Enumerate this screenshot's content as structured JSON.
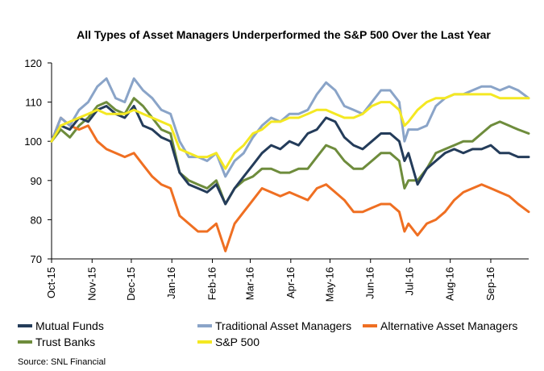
{
  "source": "Source: SNL Financial",
  "colors": {
    "mutual_funds": "#243c5a",
    "traditional": "#8aa4c8",
    "alternative": "#ef6f22",
    "trust_banks": "#6e8c3c",
    "sp500": "#f4e822"
  },
  "chart_data": {
    "type": "line",
    "title": "All Types of Asset Managers Underperformed the S&P 500 Over the Last Year",
    "xlabel": "",
    "ylabel": "",
    "ylim": [
      70,
      120
    ],
    "yticks": [
      70,
      80,
      90,
      100,
      110,
      120
    ],
    "grid": false,
    "legend": "bottom",
    "x_tick_labels": [
      "Oct-15",
      "Nov-15",
      "Dec-15",
      "Jan-16",
      "Feb-16",
      "Mar-16",
      "Apr-16",
      "May-16",
      "Jun-16",
      "Jul-16",
      "Aug-16",
      "Sep-16"
    ],
    "x": [
      "2015-10-01",
      "2015-10-08",
      "2015-10-15",
      "2015-10-22",
      "2015-10-29",
      "2015-11-05",
      "2015-11-12",
      "2015-11-19",
      "2015-11-26",
      "2015-12-03",
      "2015-12-10",
      "2015-12-17",
      "2015-12-24",
      "2015-12-31",
      "2016-01-07",
      "2016-01-14",
      "2016-01-21",
      "2016-01-28",
      "2016-02-04",
      "2016-02-11",
      "2016-02-18",
      "2016-02-25",
      "2016-03-03",
      "2016-03-10",
      "2016-03-17",
      "2016-03-24",
      "2016-03-31",
      "2016-04-07",
      "2016-04-14",
      "2016-04-21",
      "2016-04-28",
      "2016-05-05",
      "2016-05-12",
      "2016-05-19",
      "2016-05-26",
      "2016-06-02",
      "2016-06-09",
      "2016-06-16",
      "2016-06-23",
      "2016-06-27",
      "2016-06-30",
      "2016-07-07",
      "2016-07-14",
      "2016-07-21",
      "2016-07-28",
      "2016-08-04",
      "2016-08-11",
      "2016-08-18",
      "2016-08-25",
      "2016-09-01",
      "2016-09-08",
      "2016-09-15",
      "2016-09-22",
      "2016-09-30"
    ],
    "series": [
      {
        "name": "Mutual Funds",
        "color": "#243c5a",
        "values": [
          100,
          104,
          103,
          106,
          105,
          108,
          109,
          107,
          106,
          109,
          104,
          103,
          101,
          100,
          92,
          89,
          88,
          87,
          89,
          84,
          88,
          91,
          94,
          97,
          99,
          98,
          100,
          99,
          102,
          103,
          106,
          105,
          101,
          99,
          98,
          100,
          102,
          102,
          100,
          95,
          97,
          89,
          93,
          95,
          97,
          98,
          97,
          98,
          98,
          99,
          97,
          97,
          96,
          96
        ]
      },
      {
        "name": "Traditional Asset Managers",
        "color": "#8aa4c8",
        "values": [
          100,
          106,
          104,
          108,
          110,
          114,
          116,
          111,
          110,
          116,
          113,
          111,
          108,
          107,
          100,
          96,
          96,
          95,
          97,
          91,
          95,
          97,
          101,
          104,
          106,
          105,
          107,
          107,
          108,
          112,
          115,
          113,
          109,
          108,
          107,
          110,
          113,
          113,
          110,
          100,
          103,
          103,
          104,
          109,
          111,
          112,
          112,
          113,
          114,
          114,
          113,
          114,
          113,
          111
        ]
      },
      {
        "name": "Alternative Asset Managers",
        "color": "#ef6f22",
        "values": [
          100,
          106,
          104,
          103,
          104,
          100,
          98,
          97,
          96,
          97,
          94,
          91,
          89,
          88,
          81,
          79,
          77,
          77,
          79,
          72,
          79,
          82,
          85,
          88,
          87,
          86,
          87,
          86,
          85,
          88,
          89,
          87,
          85,
          82,
          82,
          83,
          84,
          84,
          82,
          77,
          79,
          76,
          79,
          80,
          82,
          85,
          87,
          88,
          89,
          88,
          87,
          86,
          84,
          82
        ]
      },
      {
        "name": "Trust Banks",
        "color": "#6e8c3c",
        "values": [
          100,
          103,
          101,
          104,
          106,
          109,
          110,
          108,
          107,
          111,
          109,
          106,
          103,
          102,
          92,
          90,
          89,
          88,
          90,
          84,
          88,
          90,
          91,
          93,
          93,
          92,
          92,
          93,
          93,
          96,
          99,
          98,
          95,
          93,
          93,
          95,
          97,
          97,
          95,
          88,
          90,
          90,
          93,
          97,
          98,
          99,
          100,
          100,
          102,
          104,
          105,
          104,
          103,
          102
        ]
      },
      {
        "name": "S&P 500",
        "color": "#f4e822",
        "values": [
          100,
          104,
          105,
          106,
          107,
          108,
          107,
          107,
          107,
          108,
          107,
          106,
          105,
          104,
          98,
          97,
          96,
          96,
          97,
          93,
          97,
          99,
          102,
          103,
          105,
          105,
          106,
          106,
          107,
          108,
          108,
          107,
          106,
          106,
          107,
          109,
          110,
          110,
          108,
          104,
          105,
          108,
          110,
          111,
          111,
          112,
          112,
          112,
          112,
          112,
          111,
          111,
          111,
          111
        ]
      }
    ]
  }
}
